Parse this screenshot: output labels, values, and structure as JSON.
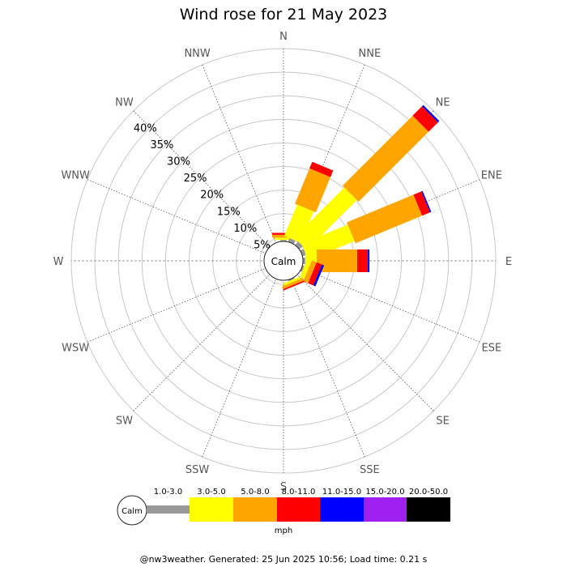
{
  "footer": "@nw3weather. Generated: 25 Jun 2025 10:56; Load time: 0.21 s",
  "calm_label": "Calm",
  "legend_calm_label": "Calm",
  "chart_data": {
    "type": "wind-rose",
    "title": "Wind rose for 21 May 2023",
    "directions": [
      "N",
      "NNE",
      "NE",
      "ENE",
      "E",
      "ESE",
      "SE",
      "SSE",
      "S",
      "SSW",
      "SW",
      "WSW",
      "W",
      "WNW",
      "NW",
      "NNW"
    ],
    "radial_ticks": [
      "5%",
      "10%",
      "15%",
      "20%",
      "25%",
      "30%",
      "35%",
      "40%"
    ],
    "radial_values": [
      5,
      10,
      15,
      20,
      25,
      30,
      35,
      40
    ],
    "radial_max": 45,
    "unit": "mph",
    "speed_bins": [
      "1.0-3.0",
      "3.0-5.0",
      "5.0-8.0",
      "8.0-11.0",
      "11.0-15.0",
      "15.0-20.0",
      "20.0-50.0"
    ],
    "bin_colors": [
      "#999999",
      "#ffff00",
      "#ffa500",
      "#ff0000",
      "#0000ff",
      "#a020f0",
      "#000000"
    ],
    "frequencies": {
      "N": [
        0.3,
        0.5,
        0.6,
        0.4,
        0,
        0,
        0
      ],
      "NNE": [
        0.8,
        7.2,
        8.1,
        1.5,
        0,
        0,
        0
      ],
      "NE": [
        1.0,
        15.0,
        21.0,
        2.8,
        0.4,
        0,
        0
      ],
      "ENE": [
        0.8,
        10.6,
        15.3,
        1.8,
        0.3,
        0,
        0
      ],
      "E": [
        0.5,
        2.4,
        8.6,
        2.2,
        0.4,
        0,
        0
      ],
      "ESE": [
        0.4,
        1.0,
        1.1,
        1.2,
        0.5,
        0,
        0
      ],
      "SE": [
        0,
        0,
        0,
        0,
        0,
        0,
        0
      ],
      "SSE": [
        0.3,
        0.5,
        0.6,
        0.3,
        0,
        0,
        0
      ],
      "S": [
        0,
        0,
        0,
        0,
        0,
        0,
        0
      ],
      "SSW": [
        0,
        0,
        0,
        0,
        0,
        0,
        0
      ],
      "SW": [
        0,
        0,
        0,
        0,
        0,
        0,
        0
      ],
      "WSW": [
        0,
        0,
        0,
        0,
        0,
        0,
        0
      ],
      "W": [
        0,
        0,
        0,
        0,
        0,
        0,
        0
      ],
      "WNW": [
        0,
        0,
        0,
        0,
        0,
        0,
        0
      ],
      "NW": [
        0,
        0,
        0,
        0,
        0,
        0,
        0
      ],
      "NNW": [
        0,
        0,
        0,
        0,
        0,
        0,
        0
      ]
    }
  }
}
